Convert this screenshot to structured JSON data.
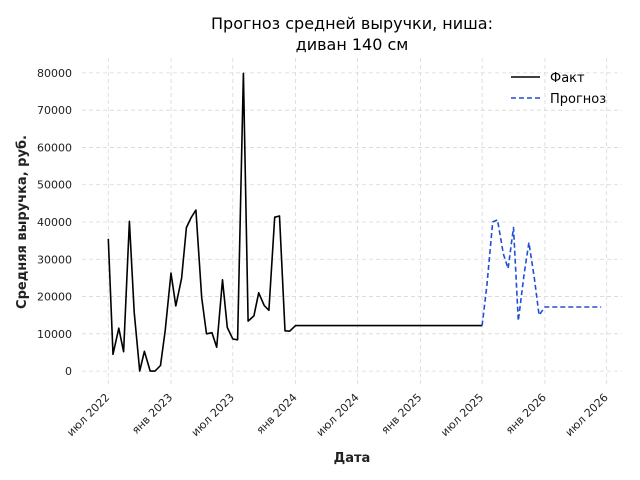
{
  "chart_data": {
    "type": "line",
    "title_lines": [
      "Прогноз средней выручки, ниша:",
      "диван 140 см"
    ],
    "xlabel": "Дата",
    "ylabel": "Средняя выручка, руб.",
    "ylim": [
      -4000,
      84000
    ],
    "xlim": [
      "2022-04-15",
      "2026-08-15"
    ],
    "yticks": [
      0,
      10000,
      20000,
      30000,
      40000,
      50000,
      60000,
      70000,
      80000
    ],
    "xticks": [
      {
        "date": "2022-07-01",
        "label": "июл 2022"
      },
      {
        "date": "2023-01-01",
        "label": "янв 2023"
      },
      {
        "date": "2023-07-01",
        "label": "июл 2023"
      },
      {
        "date": "2024-01-01",
        "label": "янв 2024"
      },
      {
        "date": "2024-07-01",
        "label": "июл 2024"
      },
      {
        "date": "2025-01-01",
        "label": "янв 2025"
      },
      {
        "date": "2025-07-01",
        "label": "июл 2025"
      },
      {
        "date": "2026-01-01",
        "label": "янв 2026"
      },
      {
        "date": "2026-07-01",
        "label": "июл 2026"
      }
    ],
    "grid": true,
    "legend_position": "top-right",
    "series": [
      {
        "name": "Факт",
        "color": "#000000",
        "style": "solid",
        "x": [
          "2022-07-01",
          "2022-07-15",
          "2022-08-01",
          "2022-08-15",
          "2022-09-01",
          "2022-09-15",
          "2022-10-01",
          "2022-10-15",
          "2022-11-01",
          "2022-11-15",
          "2022-12-01",
          "2022-12-15",
          "2023-01-01",
          "2023-01-15",
          "2023-02-01",
          "2023-02-15",
          "2023-03-01",
          "2023-03-15",
          "2023-04-01",
          "2023-04-15",
          "2023-05-01",
          "2023-05-15",
          "2023-06-01",
          "2023-06-15",
          "2023-07-01",
          "2023-07-15",
          "2023-08-01",
          "2023-08-15",
          "2023-09-01",
          "2023-09-15",
          "2023-10-01",
          "2023-10-15",
          "2023-11-01",
          "2023-11-15",
          "2023-12-01",
          "2023-12-15",
          "2024-01-01",
          "2024-01-15",
          "2024-02-01",
          "2024-02-15",
          "2024-03-01",
          "2024-03-15",
          "2024-04-01",
          "2024-04-15",
          "2024-05-01",
          "2024-05-15",
          "2024-06-01",
          "2024-06-15",
          "2024-07-01",
          "2024-07-15",
          "2024-08-01",
          "2024-08-15",
          "2024-09-01",
          "2024-09-15",
          "2024-10-01",
          "2024-10-15",
          "2024-11-01",
          "2024-11-15",
          "2024-12-01",
          "2024-12-15",
          "2025-01-01",
          "2025-01-15",
          "2025-02-01",
          "2025-02-15",
          "2025-03-01",
          "2025-03-15",
          "2025-04-01",
          "2025-04-15",
          "2025-05-01",
          "2025-05-15",
          "2025-06-01",
          "2025-06-15",
          "2025-07-01"
        ],
        "values": [
          35500,
          4500,
          11500,
          5200,
          40200,
          15800,
          0,
          5300,
          0,
          0,
          1500,
          10900,
          26300,
          17500,
          24900,
          38500,
          41200,
          43200,
          19700,
          10000,
          10300,
          6400,
          24500,
          11700,
          8600,
          8400,
          79900,
          13400,
          14800,
          21000,
          17600,
          16300,
          41300,
          41600,
          10800,
          10700,
          12200,
          12200,
          12200,
          12200,
          12200,
          12200,
          12200,
          12200,
          12200,
          12200,
          12200,
          12200,
          12200,
          12200,
          12200,
          12200,
          12200,
          12200,
          12200,
          12200,
          12200,
          12200,
          12200,
          12200,
          12200,
          12200,
          12200,
          12200,
          12200,
          12200,
          12200,
          12200,
          12200,
          12200,
          12200,
          12200,
          12200
        ]
      },
      {
        "name": "Прогноз",
        "color": "#1f4fd6",
        "style": "dashed",
        "x": [
          "2025-07-01",
          "2025-07-15",
          "2025-08-01",
          "2025-08-15",
          "2025-09-01",
          "2025-09-15",
          "2025-10-01",
          "2025-10-15",
          "2025-11-01",
          "2025-11-15",
          "2025-12-01",
          "2025-12-15",
          "2026-01-01",
          "2026-01-15",
          "2026-02-01",
          "2026-02-15",
          "2026-03-01",
          "2026-03-15",
          "2026-04-01",
          "2026-04-15",
          "2026-05-01",
          "2026-05-15",
          "2026-06-01",
          "2026-06-15"
        ],
        "values": [
          12200,
          23000,
          40000,
          40600,
          31500,
          27500,
          38500,
          13500,
          26000,
          34500,
          25000,
          15000,
          17200,
          17200,
          17200,
          17200,
          17200,
          17200,
          17200,
          17200,
          17200,
          17200,
          17200,
          17200
        ]
      }
    ]
  }
}
